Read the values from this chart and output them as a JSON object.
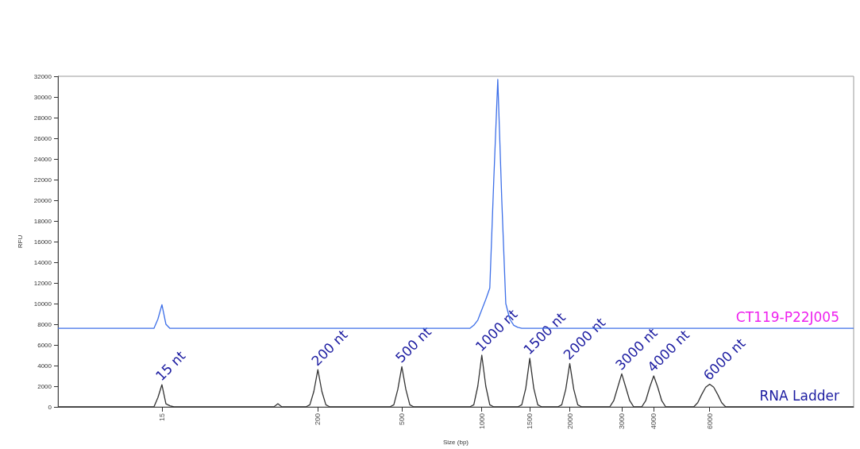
{
  "chart_data": {
    "type": "line",
    "xlabel": "Size (bp)",
    "ylabel": "RFU",
    "categories": [
      null,
      null,
      null,
      null,
      null,
      null,
      null,
      null,
      null,
      null,
      null,
      null,
      null,
      null,
      null,
      null,
      null,
      null,
      null,
      null,
      null,
      null,
      null,
      null,
      null,
      null,
      "15",
      null,
      null,
      null,
      null,
      null,
      null,
      null,
      null,
      null,
      null,
      null,
      null,
      null,
      null,
      null,
      null,
      null,
      null,
      null,
      null,
      null,
      null,
      null,
      null,
      null,
      null,
      null,
      null,
      null,
      null,
      null,
      null,
      null,
      null,
      null,
      null,
      null,
      null,
      "200",
      null,
      null,
      null,
      null,
      null,
      null,
      null,
      null,
      null,
      null,
      null,
      null,
      null,
      null,
      null,
      null,
      null,
      null,
      null,
      null,
      "500",
      null,
      null,
      null,
      null,
      null,
      null,
      null,
      null,
      null,
      null,
      null,
      null,
      null,
      null,
      null,
      null,
      null,
      null,
      null,
      "1000",
      null,
      null,
      null,
      null,
      null,
      null,
      null,
      null,
      null,
      null,
      null,
      "1500",
      null,
      null,
      null,
      null,
      null,
      null,
      null,
      null,
      null,
      "2000",
      null,
      null,
      null,
      null,
      null,
      null,
      null,
      null,
      null,
      null,
      null,
      null,
      "3000",
      null,
      null,
      null,
      null,
      null,
      null,
      null,
      "4000",
      null,
      null,
      null,
      null,
      null,
      null,
      null,
      null,
      null,
      null,
      null,
      null,
      null,
      "6000",
      null,
      null,
      null,
      null,
      null,
      null,
      null,
      null,
      null,
      null,
      null,
      null,
      null,
      null,
      null,
      null,
      null,
      null,
      null,
      null,
      null,
      null,
      null,
      null,
      null,
      null,
      null,
      null,
      null,
      null,
      null,
      null,
      null,
      null,
      null,
      null
    ],
    "ylim": [
      0,
      32000
    ],
    "yticks": [
      0,
      2000,
      4000,
      6000,
      8000,
      10000,
      12000,
      14000,
      16000,
      18000,
      20000,
      22000,
      24000,
      26000,
      28000,
      30000,
      32000
    ],
    "grid": false,
    "legend": false,
    "marker": "none",
    "line_style": "solid",
    "series": [
      {
        "name": "CT119-P22J005",
        "color": "#3d6fe8",
        "values": [
          7600,
          7600,
          7600,
          7600,
          7600,
          7600,
          7600,
          7600,
          7600,
          7600,
          7600,
          7600,
          7600,
          7600,
          7600,
          7600,
          7600,
          7600,
          7600,
          7600,
          7600,
          7600,
          7600,
          7600,
          7600,
          8500,
          9900,
          8000,
          7600,
          7600,
          7600,
          7600,
          7600,
          7600,
          7600,
          7600,
          7600,
          7600,
          7600,
          7600,
          7600,
          7600,
          7600,
          7600,
          7600,
          7600,
          7600,
          7600,
          7600,
          7600,
          7600,
          7600,
          7600,
          7600,
          7600,
          7600,
          7600,
          7600,
          7600,
          7600,
          7600,
          7600,
          7600,
          7600,
          7600,
          7600,
          7600,
          7600,
          7600,
          7600,
          7600,
          7600,
          7600,
          7600,
          7600,
          7600,
          7600,
          7600,
          7600,
          7600,
          7600,
          7600,
          7600,
          7600,
          7600,
          7600,
          7600,
          7600,
          7600,
          7600,
          7600,
          7600,
          7600,
          7600,
          7600,
          7600,
          7600,
          7600,
          7600,
          7600,
          7600,
          7600,
          7600,
          7600,
          7900,
          8400,
          9400,
          10400,
          11500,
          22000,
          31700,
          20000,
          10000,
          8500,
          7900,
          7700,
          7600,
          7600,
          7600,
          7600,
          7600,
          7600,
          7600,
          7600,
          7600,
          7600,
          7600,
          7600,
          7600,
          7600,
          7600,
          7600,
          7600,
          7600,
          7600,
          7600,
          7600,
          7600,
          7600,
          7600,
          7600,
          7600,
          7600,
          7600,
          7600,
          7600,
          7600,
          7600,
          7600,
          7600,
          7600,
          7600,
          7600,
          7600,
          7600,
          7600,
          7600,
          7600,
          7600,
          7600,
          7600,
          7600,
          7600,
          7600,
          7600,
          7600,
          7600,
          7600,
          7600,
          7600,
          7600,
          7600,
          7600,
          7600,
          7600,
          7600,
          7600,
          7600,
          7600,
          7600,
          7600,
          7600,
          7600,
          7600,
          7600,
          7600,
          7600,
          7600,
          7600,
          7600,
          7600,
          7600,
          7600,
          7600,
          7600,
          7600,
          7600,
          7600,
          7600,
          7600
        ]
      },
      {
        "name": "RNA Ladder",
        "color": "#333333",
        "values": [
          0,
          0,
          0,
          0,
          0,
          0,
          0,
          0,
          0,
          0,
          0,
          0,
          0,
          0,
          0,
          0,
          0,
          0,
          0,
          0,
          0,
          0,
          0,
          0,
          0,
          900,
          2150,
          300,
          100,
          0,
          0,
          0,
          0,
          0,
          0,
          0,
          0,
          0,
          0,
          0,
          0,
          0,
          0,
          0,
          0,
          0,
          0,
          0,
          0,
          0,
          0,
          0,
          0,
          0,
          0,
          300,
          0,
          0,
          0,
          0,
          0,
          0,
          0,
          200,
          1500,
          3600,
          1500,
          200,
          0,
          0,
          0,
          0,
          0,
          0,
          0,
          0,
          0,
          0,
          0,
          0,
          0,
          0,
          0,
          0,
          200,
          1700,
          3900,
          1700,
          200,
          0,
          0,
          0,
          0,
          0,
          0,
          0,
          0,
          0,
          0,
          0,
          0,
          0,
          0,
          0,
          200,
          2000,
          5000,
          2000,
          200,
          0,
          0,
          0,
          0,
          0,
          0,
          0,
          200,
          1800,
          4700,
          1800,
          200,
          0,
          0,
          0,
          0,
          0,
          200,
          1700,
          4200,
          1700,
          200,
          0,
          0,
          0,
          0,
          0,
          0,
          0,
          0,
          600,
          1900,
          3200,
          1900,
          600,
          0,
          0,
          0,
          600,
          1900,
          3000,
          1900,
          600,
          0,
          0,
          0,
          0,
          0,
          0,
          0,
          0,
          400,
          1200,
          1900,
          2200,
          1900,
          1200,
          400,
          0,
          0,
          0,
          0,
          0,
          0,
          0,
          0,
          0,
          0,
          0,
          0,
          0,
          0,
          0,
          0,
          0,
          0,
          0,
          0,
          0,
          0,
          0,
          0,
          0,
          0,
          0,
          0,
          0,
          0,
          0,
          0,
          0
        ]
      }
    ],
    "annotations": [
      {
        "text": "15 nt",
        "x": "15",
        "y": 2150
      },
      {
        "text": "200 nt",
        "x": "200",
        "y": 3600
      },
      {
        "text": "500 nt",
        "x": "500",
        "y": 3900
      },
      {
        "text": "1000 nt",
        "x": "1000",
        "y": 5000
      },
      {
        "text": "1500 nt",
        "x": "1500",
        "y": 4700
      },
      {
        "text": "2000 nt",
        "x": "2000",
        "y": 4200
      },
      {
        "text": "3000 nt",
        "x": "3000",
        "y": 3200
      },
      {
        "text": "4000 nt",
        "x": "4000",
        "y": 3000
      },
      {
        "text": "6000 nt",
        "x": "6000",
        "y": 2200
      }
    ]
  }
}
